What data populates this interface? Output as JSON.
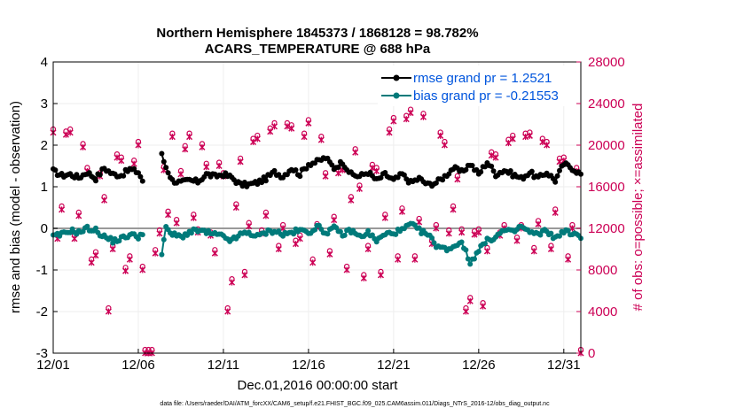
{
  "chart_data": {
    "type": "line",
    "title_line1": "Northern Hemisphere 1845373 / 1868128 = 98.782%",
    "title_line2": "ACARS_TEMPERATURE @ 688 hPa",
    "xlabel": "Dec.01,2016 00:00:00 start",
    "ylabel_left": "rmse and bias (model - observation)",
    "ylabel_right": "# of obs: o=possible; ×=assimilated",
    "footnote": "data file: /Users/raeder/DAI/ATM_forcXX/CAM6_setup/f.e21.FHIST_BGC.f09_025.CAM6assim.011/Diags_NTrS_2016-12/obs_diag_output.nc",
    "ylim_left": [
      -3,
      4
    ],
    "ylim_right": [
      0,
      28000
    ],
    "xlim": [
      1,
      32
    ],
    "x_tick_values": [
      1,
      6,
      11,
      16,
      21,
      26,
      31
    ],
    "x_tick_labels": [
      "12/01",
      "12/06",
      "12/11",
      "12/16",
      "12/21",
      "12/26",
      "12/31"
    ],
    "y_left_ticks": [
      -3,
      -2,
      -1,
      0,
      1,
      2,
      3,
      4
    ],
    "y_right_ticks": [
      0,
      4000,
      8000,
      12000,
      16000,
      20000,
      24000,
      28000
    ],
    "legend": {
      "rmse_label": "rmse grand pr = 1.2521",
      "bias_label": "bias grand pr = -0.21553"
    },
    "colors": {
      "rmse": "#000000",
      "bias": "#007a7a",
      "obs": "#cc0055",
      "zero_line": "#999999"
    },
    "rmse_keys": [
      [
        1.0,
        1.38
      ],
      [
        1.5,
        1.27
      ],
      [
        2.0,
        1.3
      ],
      [
        2.5,
        1.22
      ],
      [
        3.0,
        1.35
      ],
      [
        3.5,
        1.2
      ],
      [
        4.0,
        1.45
      ],
      [
        4.5,
        1.3
      ],
      [
        5.0,
        1.28
      ],
      [
        5.5,
        1.42
      ],
      [
        6.0,
        1.35
      ],
      [
        6.25,
        1.15
      ],
      [
        6.5,
        null
      ],
      [
        7.0,
        null
      ],
      [
        7.3,
        1.85
      ],
      [
        7.6,
        1.5
      ],
      [
        8.0,
        1.15
      ],
      [
        8.5,
        1.1
      ],
      [
        9.0,
        1.15
      ],
      [
        9.5,
        1.12
      ],
      [
        10.0,
        1.3
      ],
      [
        10.5,
        1.25
      ],
      [
        11.0,
        1.3
      ],
      [
        11.5,
        1.22
      ],
      [
        12.0,
        1.05
      ],
      [
        12.5,
        1.05
      ],
      [
        13.0,
        1.1
      ],
      [
        13.5,
        1.2
      ],
      [
        14.0,
        1.35
      ],
      [
        14.5,
        1.25
      ],
      [
        15.0,
        1.45
      ],
      [
        15.5,
        1.3
      ],
      [
        16.0,
        1.55
      ],
      [
        16.5,
        1.6
      ],
      [
        17.0,
        1.7
      ],
      [
        17.5,
        1.45
      ],
      [
        18.0,
        1.6
      ],
      [
        18.5,
        1.3
      ],
      [
        19.0,
        1.25
      ],
      [
        19.5,
        1.35
      ],
      [
        20.0,
        1.15
      ],
      [
        20.5,
        1.3
      ],
      [
        21.0,
        1.15
      ],
      [
        21.5,
        1.3
      ],
      [
        22.0,
        1.1
      ],
      [
        22.5,
        1.2
      ],
      [
        23.0,
        1.05
      ],
      [
        23.5,
        1.1
      ],
      [
        24.0,
        1.25
      ],
      [
        24.5,
        1.45
      ],
      [
        25.0,
        1.35
      ],
      [
        25.5,
        1.55
      ],
      [
        26.0,
        1.3
      ],
      [
        26.5,
        1.6
      ],
      [
        27.0,
        1.3
      ],
      [
        27.5,
        1.4
      ],
      [
        28.0,
        1.3
      ],
      [
        28.5,
        1.2
      ],
      [
        29.0,
        1.35
      ],
      [
        29.5,
        1.2
      ],
      [
        30.0,
        1.35
      ],
      [
        30.5,
        1.15
      ],
      [
        31.0,
        1.55
      ],
      [
        31.5,
        1.45
      ],
      [
        32.0,
        1.3
      ]
    ],
    "bias_keys": [
      [
        1.0,
        -0.2
      ],
      [
        1.5,
        -0.15
      ],
      [
        2.0,
        -0.05
      ],
      [
        2.5,
        -0.1
      ],
      [
        3.0,
        0.0
      ],
      [
        3.5,
        -0.05
      ],
      [
        4.0,
        -0.2
      ],
      [
        4.5,
        -0.3
      ],
      [
        5.0,
        -0.25
      ],
      [
        5.5,
        -0.15
      ],
      [
        6.0,
        -0.2
      ],
      [
        6.25,
        -0.1
      ],
      [
        6.5,
        null
      ],
      [
        7.0,
        null
      ],
      [
        7.3,
        -0.85
      ],
      [
        7.6,
        0.0
      ],
      [
        8.0,
        -0.15
      ],
      [
        8.5,
        -0.2
      ],
      [
        9.0,
        -0.1
      ],
      [
        9.5,
        -0.05
      ],
      [
        10.0,
        -0.1
      ],
      [
        10.5,
        -0.15
      ],
      [
        11.0,
        -0.2
      ],
      [
        11.5,
        -0.3
      ],
      [
        12.0,
        -0.15
      ],
      [
        12.5,
        -0.1
      ],
      [
        13.0,
        -0.2
      ],
      [
        13.5,
        -0.1
      ],
      [
        14.0,
        -0.05
      ],
      [
        14.5,
        -0.15
      ],
      [
        15.0,
        -0.1
      ],
      [
        15.5,
        -0.05
      ],
      [
        16.0,
        -0.1
      ],
      [
        16.5,
        0.05
      ],
      [
        17.0,
        -0.1
      ],
      [
        17.5,
        0.0
      ],
      [
        18.0,
        -0.15
      ],
      [
        18.5,
        -0.05
      ],
      [
        19.0,
        -0.2
      ],
      [
        19.5,
        -0.1
      ],
      [
        20.0,
        -0.3
      ],
      [
        20.5,
        -0.15
      ],
      [
        21.0,
        -0.1
      ],
      [
        21.5,
        -0.05
      ],
      [
        22.0,
        0.1
      ],
      [
        22.5,
        -0.05
      ],
      [
        23.0,
        -0.15
      ],
      [
        23.5,
        -0.4
      ],
      [
        24.0,
        -0.5
      ],
      [
        24.5,
        -0.45
      ],
      [
        25.0,
        -0.3
      ],
      [
        25.5,
        -0.85
      ],
      [
        26.0,
        -0.5
      ],
      [
        26.5,
        -0.3
      ],
      [
        27.0,
        -0.2
      ],
      [
        27.5,
        -0.05
      ],
      [
        28.0,
        -0.1
      ],
      [
        28.5,
        0.05
      ],
      [
        29.0,
        -0.1
      ],
      [
        29.5,
        -0.15
      ],
      [
        30.0,
        -0.05
      ],
      [
        30.5,
        -0.25
      ],
      [
        31.0,
        -0.05
      ],
      [
        31.5,
        -0.15
      ],
      [
        32.0,
        -0.2
      ]
    ],
    "obs_points": [
      [
        1.0,
        21200
      ],
      [
        1.25,
        11000
      ],
      [
        1.5,
        13800
      ],
      [
        1.75,
        21000
      ],
      [
        2.0,
        21200
      ],
      [
        2.25,
        11000
      ],
      [
        2.5,
        13200
      ],
      [
        2.75,
        19800
      ],
      [
        3.0,
        17500
      ],
      [
        3.25,
        8700
      ],
      [
        3.5,
        9400
      ],
      [
        3.75,
        17000
      ],
      [
        4.0,
        14700
      ],
      [
        4.25,
        4000
      ],
      [
        4.5,
        10000
      ],
      [
        4.75,
        18800
      ],
      [
        5.0,
        18500
      ],
      [
        5.25,
        7900
      ],
      [
        5.5,
        9000
      ],
      [
        5.75,
        18200
      ],
      [
        6.0,
        20000
      ],
      [
        6.25,
        8000
      ],
      [
        6.4,
        0
      ],
      [
        6.6,
        0
      ],
      [
        6.8,
        0
      ],
      [
        7.0,
        9600
      ],
      [
        7.25,
        11500
      ],
      [
        7.5,
        17600
      ],
      [
        7.75,
        13300
      ],
      [
        8.0,
        20800
      ],
      [
        8.25,
        12500
      ],
      [
        8.5,
        17200
      ],
      [
        8.75,
        19600
      ],
      [
        9.0,
        20800
      ],
      [
        9.25,
        13000
      ],
      [
        9.5,
        11600
      ],
      [
        9.75,
        19800
      ],
      [
        10.0,
        17900
      ],
      [
        10.25,
        11300
      ],
      [
        10.5,
        9600
      ],
      [
        10.75,
        18000
      ],
      [
        11.0,
        17000
      ],
      [
        11.25,
        4000
      ],
      [
        11.5,
        6800
      ],
      [
        11.75,
        14000
      ],
      [
        12.0,
        18400
      ],
      [
        12.25,
        7500
      ],
      [
        12.5,
        12200
      ],
      [
        12.75,
        20300
      ],
      [
        13.0,
        20600
      ],
      [
        13.25,
        11500
      ],
      [
        13.5,
        13200
      ],
      [
        13.75,
        21300
      ],
      [
        14.0,
        21800
      ],
      [
        14.25,
        10000
      ],
      [
        14.5,
        12000
      ],
      [
        14.75,
        21800
      ],
      [
        15.0,
        21600
      ],
      [
        15.25,
        10500
      ],
      [
        15.5,
        11000
      ],
      [
        15.75,
        20800
      ],
      [
        16.0,
        22100
      ],
      [
        16.25,
        8700
      ],
      [
        16.5,
        12100
      ],
      [
        16.75,
        20500
      ],
      [
        17.0,
        17000
      ],
      [
        17.25,
        9500
      ],
      [
        17.5,
        12800
      ],
      [
        17.75,
        17300
      ],
      [
        18.0,
        17600
      ],
      [
        18.25,
        8000
      ],
      [
        18.5,
        14700
      ],
      [
        18.75,
        19300
      ],
      [
        19.0,
        15800
      ],
      [
        19.25,
        7200
      ],
      [
        19.5,
        10000
      ],
      [
        19.75,
        17800
      ],
      [
        20.0,
        17500
      ],
      [
        20.25,
        7500
      ],
      [
        20.5,
        13000
      ],
      [
        20.75,
        21200
      ],
      [
        21.0,
        22300
      ],
      [
        21.25,
        9000
      ],
      [
        21.5,
        13600
      ],
      [
        21.75,
        22500
      ],
      [
        22.0,
        23100
      ],
      [
        22.25,
        9000
      ],
      [
        22.5,
        12600
      ],
      [
        22.75,
        22700
      ],
      [
        23.0,
        24100
      ],
      [
        23.25,
        10500
      ],
      [
        23.5,
        12000
      ],
      [
        23.75,
        20900
      ],
      [
        24.0,
        20000
      ],
      [
        24.25,
        11500
      ],
      [
        24.5,
        13800
      ],
      [
        24.75,
        16700
      ],
      [
        25.0,
        11600
      ],
      [
        25.25,
        4000
      ],
      [
        25.5,
        5000
      ],
      [
        25.75,
        11400
      ],
      [
        26.0,
        11600
      ],
      [
        26.25,
        4500
      ],
      [
        26.5,
        9800
      ],
      [
        26.75,
        19000
      ],
      [
        27.0,
        18800
      ],
      [
        27.25,
        11300
      ],
      [
        27.5,
        12000
      ],
      [
        27.75,
        20200
      ],
      [
        28.0,
        20600
      ],
      [
        28.25,
        10800
      ],
      [
        28.5,
        12000
      ],
      [
        28.75,
        20800
      ],
      [
        29.0,
        20900
      ],
      [
        29.25,
        9800
      ],
      [
        29.5,
        12400
      ],
      [
        29.75,
        20300
      ],
      [
        30.0,
        20000
      ],
      [
        30.25,
        10000
      ],
      [
        30.5,
        13500
      ],
      [
        30.75,
        18400
      ],
      [
        31.0,
        18500
      ],
      [
        31.25,
        9000
      ],
      [
        31.5,
        12000
      ],
      [
        31.75,
        17500
      ],
      [
        32.0,
        0
      ]
    ]
  }
}
